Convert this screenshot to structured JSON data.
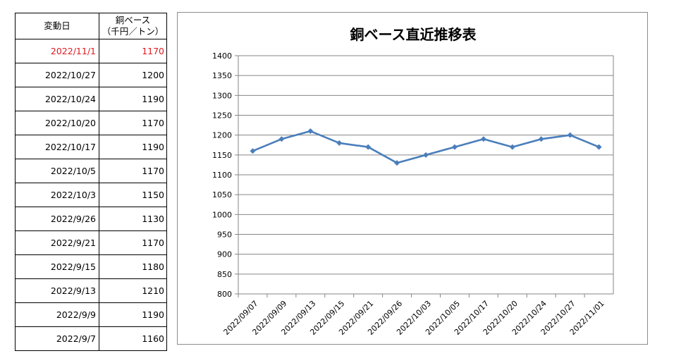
{
  "table": {
    "header_date": "変動日",
    "header_price_line1": "銅ベース",
    "header_price_line2": "（千円／トン）",
    "rows": [
      {
        "date": "2022/11/1",
        "price": "1170"
      },
      {
        "date": "2022/10/27",
        "price": "1200"
      },
      {
        "date": "2022/10/24",
        "price": "1190"
      },
      {
        "date": "2022/10/20",
        "price": "1170"
      },
      {
        "date": "2022/10/17",
        "price": "1190"
      },
      {
        "date": "2022/10/5",
        "price": "1170"
      },
      {
        "date": "2022/10/3",
        "price": "1150"
      },
      {
        "date": "2022/9/26",
        "price": "1130"
      },
      {
        "date": "2022/9/21",
        "price": "1170"
      },
      {
        "date": "2022/9/15",
        "price": "1180"
      },
      {
        "date": "2022/9/13",
        "price": "1210"
      },
      {
        "date": "2022/9/9",
        "price": "1190"
      },
      {
        "date": "2022/9/7",
        "price": "1160"
      }
    ],
    "latest_color": "#e0191f"
  },
  "chart_data": {
    "type": "line",
    "title": "銅ベース直近推移表",
    "categories": [
      "2022/09/07",
      "2022/09/09",
      "2022/09/13",
      "2022/09/15",
      "2022/09/21",
      "2022/09/26",
      "2022/10/03",
      "2022/10/05",
      "2022/10/17",
      "2022/10/20",
      "2022/10/24",
      "2022/10/27",
      "2022/11/01"
    ],
    "series": [
      {
        "values": [
          1160,
          1190,
          1210,
          1180,
          1170,
          1130,
          1150,
          1170,
          1190,
          1170,
          1190,
          1200,
          1170
        ],
        "color": "#4a7ebb"
      }
    ],
    "ylim": [
      800,
      1400
    ],
    "yticks": [
      800,
      850,
      900,
      950,
      1000,
      1050,
      1100,
      1150,
      1200,
      1250,
      1300,
      1350,
      1400
    ],
    "grid": true,
    "legend": "none"
  }
}
